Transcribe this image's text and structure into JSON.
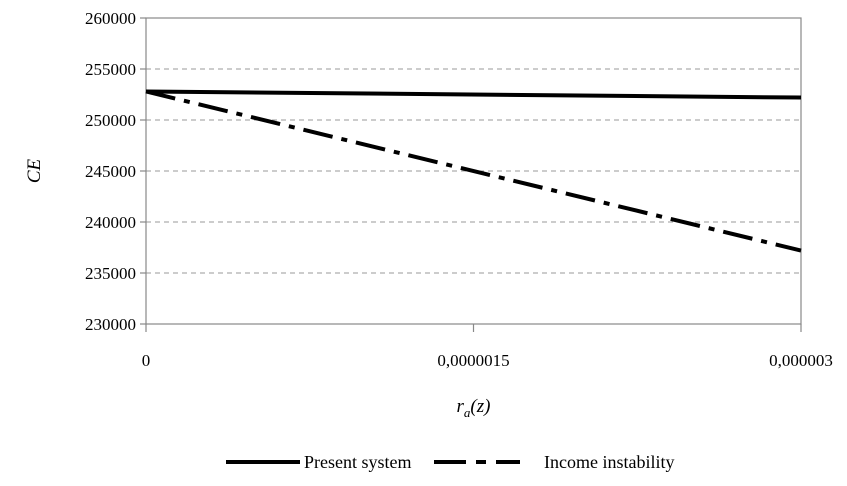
{
  "chart_data": {
    "type": "line",
    "title": "",
    "xlabel": {
      "main": "r",
      "sub": "a",
      "rest": "(z)"
    },
    "ylabel": "CE",
    "xlim": [
      0,
      3e-06
    ],
    "ylim": [
      230000,
      260000
    ],
    "x_ticks": [
      {
        "value": 0,
        "label": "0"
      },
      {
        "value": 1.5e-06,
        "label": "0,0000015"
      },
      {
        "value": 3e-06,
        "label": "0,000003"
      }
    ],
    "y_ticks": [
      {
        "value": 230000,
        "label": "230000"
      },
      {
        "value": 235000,
        "label": "235000"
      },
      {
        "value": 240000,
        "label": "240000"
      },
      {
        "value": 245000,
        "label": "245000"
      },
      {
        "value": 250000,
        "label": "250000"
      },
      {
        "value": 255000,
        "label": "255000"
      },
      {
        "value": 260000,
        "label": "260000"
      }
    ],
    "grid": "horizontal-dashed",
    "legend_position": "bottom",
    "series": [
      {
        "name": "Present system",
        "style": "solid",
        "x": [
          0,
          3e-06
        ],
        "y": [
          252800,
          252200
        ]
      },
      {
        "name": "Income instability",
        "style": "dash-dot",
        "x": [
          0,
          3e-06
        ],
        "y": [
          252800,
          237200
        ]
      }
    ]
  },
  "colors": {
    "line": "#000000",
    "grid": "#999999",
    "axis": "#888888"
  }
}
